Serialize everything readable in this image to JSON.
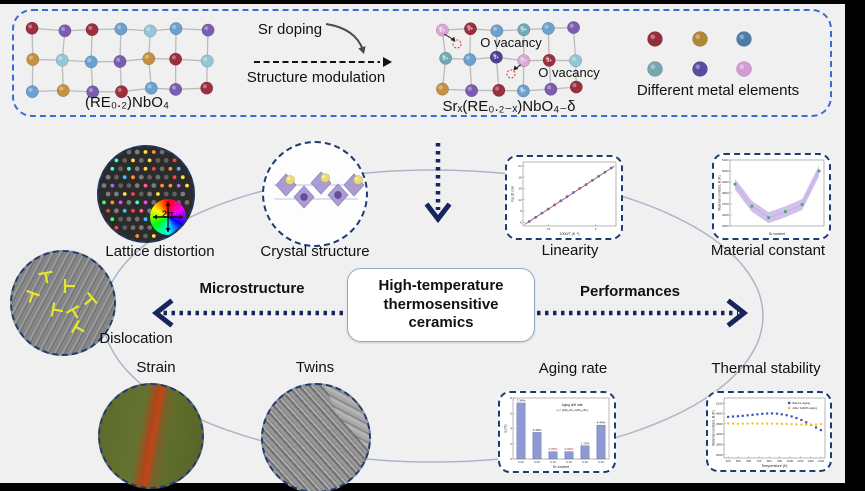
{
  "banner": {
    "sr_doping": "Sr doping",
    "structure_modulation": "Structure modulation",
    "left_formula": "(RE₀.₂)NbO₄",
    "right_formula": "Srₓ(RE₀.₂₋ₓ)NbO₄₋δ",
    "o_vacancy_1": "O vacancy",
    "o_vacancy_2": "O vacancy",
    "metal_elements_label": "Different metal elements",
    "charges": {
      "two": "2+",
      "three": "3+"
    },
    "palette": {
      "r": "#9b2f3d",
      "p": "#7a5db1",
      "b": "#6ba0cf",
      "c": "#93c6d6",
      "o": "#c3913f",
      "t": "#6fa9b1",
      "d": "#4d3d91",
      "k": "#d9a6d6"
    },
    "left_lattice": [
      [
        "r",
        "p",
        "r",
        "b",
        "c",
        "b",
        "p"
      ],
      [
        "o",
        "c",
        "b",
        "p",
        "o",
        "r",
        "c"
      ],
      [
        "b",
        "o",
        "p",
        "r",
        "b",
        "p",
        "r"
      ]
    ],
    "right_lattice": [
      [
        "k2",
        "r3",
        "b",
        "t3",
        "b",
        "p"
      ],
      [
        "t3",
        "b",
        "d3",
        "k2",
        "r3",
        "c"
      ],
      [
        "o",
        "p",
        "r",
        "b3",
        "p",
        "r"
      ]
    ],
    "metal_dots": [
      "#942e3d",
      "#b08733",
      "#4e7ca8",
      "#76a7ad",
      "#5b4a9e",
      "#d49bd4"
    ],
    "vacancy_color": "#e05050"
  },
  "center": {
    "line1": "High-temperature",
    "line2": "thermosensitive",
    "line3": "ceramics"
  },
  "branches": {
    "left_label": "Microstructure",
    "right_label": "Performances",
    "arrow_color": "#17255f"
  },
  "micro_items": {
    "lattice_distortion": "Lattice distortion",
    "crystal_structure": "Crystal structure",
    "dislocation": "Dislocation",
    "strain": "Strain",
    "twins": "Twins",
    "color_wheel_label": "2π"
  },
  "perf_items": {
    "linearity": "Linearity",
    "material_constant": "Material constant",
    "aging_rate": "Aging rate",
    "thermal_stability": "Thermal stability"
  },
  "chart_data": [
    {
      "type": "scatter",
      "title": "Linearity",
      "xlabel": "1000/T (K⁻¹)",
      "ylabel": "lnρ (Ω cm)",
      "xlim": [
        0.7,
        3.65
      ],
      "ylim": [
        5,
        22
      ],
      "xticks": [
        1.5,
        3.0
      ],
      "yticks": [
        6,
        9,
        12,
        15,
        18,
        21
      ],
      "x": [
        0.9,
        1.1,
        1.3,
        1.5,
        1.7,
        1.9,
        2.1,
        2.3,
        2.5,
        2.7,
        2.9,
        3.1,
        3.3,
        3.5
      ],
      "y": [
        6.2,
        7.3,
        8.4,
        9.5,
        10.6,
        11.7,
        12.8,
        13.9,
        15.0,
        16.0,
        17.1,
        18.2,
        19.3,
        20.4
      ],
      "fit_line": {
        "x": [
          0.75,
          3.6
        ],
        "y": [
          5.4,
          20.9
        ],
        "color": "#e04848"
      },
      "marker_color": "#5b7fc4",
      "grid": false
    },
    {
      "type": "line",
      "title": "Material constant",
      "xlabel": "Sr content",
      "ylabel": "Material constant, B (K)",
      "x": [
        0.0,
        0.05,
        0.1,
        0.15,
        0.2,
        0.25
      ],
      "y": [
        4880,
        4680,
        4575,
        4630,
        4695,
        5000
      ],
      "band": 50,
      "xlim": [
        -0.015,
        0.265
      ],
      "ylim": [
        4500,
        5100
      ],
      "yticks": [
        4500,
        4600,
        4700,
        4800,
        4900,
        5000,
        5100
      ],
      "xtick_labels": [
        "0.00",
        "0.05",
        "0.10",
        "0.15",
        "0.20",
        "0.25"
      ],
      "band_color": "#c9b5e9",
      "line_color": "#bfaede",
      "marker_color": "#3fae6a",
      "grid": false
    },
    {
      "type": "bar",
      "title": "Aging rate",
      "xlabel": "Sr content",
      "ylabel": "q (%)",
      "categories": [
        "0.00",
        "0.05",
        "0.10",
        "0.15",
        "0.20",
        "0.25"
      ],
      "values": [
        7.34,
        3.49,
        0.95,
        0.96,
        1.72,
        4.44
      ],
      "value_labels": [
        "7.34%",
        "3.49%",
        "0.95%",
        "0.96%",
        "1.72%",
        "4.44%"
      ],
      "label_colors": [
        "#222222",
        "#222222",
        "#d42020",
        "#d42020",
        "#222222",
        "#222222"
      ],
      "ylim": [
        0,
        8
      ],
      "yticks": [
        0,
        2,
        4,
        6,
        8
      ],
      "bar_color": "#8e9ad2",
      "bar_edge": "#6b77b8",
      "annotation": [
        "Aging drift rate:",
        "q = (ΔR₂₅/R₀)-(ΔR₂₅/R₀)"
      ],
      "grid": false
    },
    {
      "type": "scatter",
      "title": "Thermal stability",
      "xlabel": "Temperature (K)",
      "ylabel": "Material constant, B (K)",
      "xlim": [
        360,
        1340
      ],
      "ylim": [
        3500,
        5250
      ],
      "xticks": [
        400,
        500,
        600,
        700,
        800,
        900,
        1000,
        1100,
        1200,
        1300
      ],
      "yticks": [
        3600,
        3900,
        4200,
        4500,
        4800,
        5100
      ],
      "legend_position": "top-right",
      "series": [
        {
          "name": "Before aging",
          "marker": "square",
          "color": "#3f51b5",
          "x": [
            400,
            447,
            495,
            542,
            589,
            637,
            684,
            732,
            779,
            826,
            874,
            921,
            968,
            1016,
            1063,
            1111,
            1158,
            1205,
            1253,
            1300
          ],
          "y": [
            4700,
            4710,
            4718,
            4730,
            4745,
            4760,
            4775,
            4788,
            4798,
            4800,
            4793,
            4775,
            4748,
            4712,
            4665,
            4608,
            4540,
            4465,
            4390,
            4315
          ]
        },
        {
          "name": "After 1000h aging",
          "marker": "circle",
          "color": "#f2c71d",
          "x": [
            400,
            447,
            495,
            542,
            589,
            637,
            684,
            732,
            779,
            826,
            874,
            921,
            968,
            1016,
            1063,
            1111,
            1158,
            1205,
            1253,
            1300
          ],
          "y": [
            4505,
            4502,
            4500,
            4500,
            4501,
            4503,
            4505,
            4504,
            4502,
            4500,
            4498,
            4495,
            4491,
            4487,
            4481,
            4474,
            4468,
            4470,
            4477,
            4487
          ]
        }
      ],
      "grid": false
    }
  ]
}
